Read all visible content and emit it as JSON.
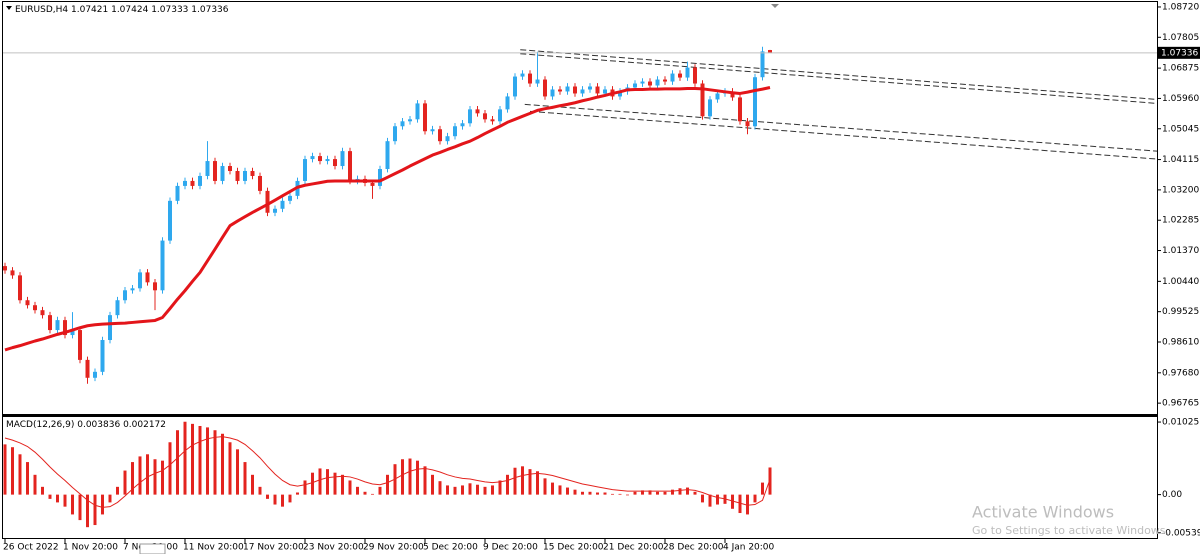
{
  "chart_data": {
    "type": "candlestick",
    "symbol": "EURUSD,H4",
    "up_color": "#2ea8ee",
    "down_color": "#e3241f",
    "categories": [
      "26 Oct 2022",
      null,
      null,
      null,
      null,
      null,
      null,
      null,
      "1 Nov 20:00",
      null,
      null,
      null,
      null,
      null,
      null,
      null,
      "7 Nov 20:00",
      null,
      null,
      null,
      null,
      null,
      null,
      null,
      "11 Nov 20:00",
      null,
      null,
      null,
      null,
      null,
      null,
      null,
      "17 Nov 20:00",
      null,
      null,
      null,
      null,
      null,
      null,
      null,
      "23 Nov 20:00",
      null,
      null,
      null,
      null,
      null,
      null,
      null,
      "29 Nov 20:00",
      null,
      null,
      null,
      null,
      null,
      null,
      null,
      "5 Dec 20:00",
      null,
      null,
      null,
      null,
      null,
      null,
      null,
      "9 Dec 20:00",
      null,
      null,
      null,
      null,
      null,
      null,
      null,
      "15 Dec 20:00",
      null,
      null,
      null,
      null,
      null,
      null,
      null,
      "21 Dec 20:00",
      null,
      null,
      null,
      null,
      null,
      null,
      null,
      "28 Dec 20:00",
      null,
      null,
      null,
      null,
      null,
      null,
      null,
      "4 Jan 20:00",
      null,
      null,
      null,
      null,
      null,
      null
    ],
    "open": [
      1.009,
      1.0077,
      1.0062,
      0.9987,
      0.9972,
      0.9957,
      0.9942,
      0.9897,
      0.9927,
      0.9882,
      0.9897,
      0.9807,
      0.9753,
      0.9771,
      0.9867,
      0.9942,
      0.9987,
      1.0017,
      1.0023,
      1.0071,
      1.0041,
      1.0017,
      1.0167,
      1.0287,
      1.0332,
      1.0347,
      1.0332,
      1.0362,
      1.0407,
      1.0347,
      1.0392,
      1.0377,
      1.0347,
      1.0377,
      1.0362,
      1.0317,
      1.0251,
      1.0263,
      1.0287,
      1.0302,
      1.0347,
      1.0413,
      1.0422,
      1.0407,
      1.0413,
      1.0392,
      1.0437,
      1.0347,
      1.0353,
      1.0341,
      1.0332,
      1.0383,
      1.0467,
      1.0512,
      1.0527,
      1.0533,
      1.0581,
      1.0497,
      1.0503,
      1.0467,
      1.0482,
      1.0512,
      1.0521,
      1.0563,
      1.0551,
      1.0533,
      1.0527,
      1.0563,
      1.0602,
      1.0662,
      1.0671,
      1.0641,
      1.0653,
      1.0602,
      1.0623,
      1.0617,
      1.0632,
      1.0611,
      1.0623,
      1.0632,
      1.0611,
      1.0623,
      1.0602,
      1.0617,
      1.0629,
      1.0641,
      1.0647,
      1.0635,
      1.0653,
      1.0647,
      1.0671,
      1.0659,
      1.0689,
      1.0641,
      1.0542,
      1.0593,
      1.0611,
      1.0617,
      1.0599,
      1.0527,
      1.0512,
      1.066,
      1.07421
    ],
    "high": [
      1.01,
      1.0087,
      1.0072,
      0.9997,
      0.9982,
      0.9967,
      0.9952,
      0.9937,
      0.9937,
      0.9951,
      0.9907,
      0.9817,
      0.9781,
      0.9877,
      0.9952,
      0.9997,
      1.0027,
      1.0033,
      1.0081,
      1.0081,
      1.0051,
      1.0177,
      1.0297,
      1.0342,
      1.0357,
      1.0357,
      1.0372,
      1.0467,
      1.0417,
      1.0402,
      1.0402,
      1.0387,
      1.0387,
      1.0387,
      1.0372,
      1.0327,
      1.0273,
      1.0297,
      1.0312,
      1.0357,
      1.0423,
      1.0432,
      1.0432,
      1.0423,
      1.0423,
      1.0447,
      1.0447,
      1.0363,
      1.0363,
      1.0351,
      1.0393,
      1.0477,
      1.0522,
      1.0537,
      1.0543,
      1.0591,
      1.0591,
      1.0513,
      1.0513,
      1.0492,
      1.0522,
      1.0531,
      1.0573,
      1.0573,
      1.0561,
      1.0543,
      1.0573,
      1.0612,
      1.0672,
      1.0681,
      1.0681,
      1.0737,
      1.0663,
      1.0633,
      1.0633,
      1.0642,
      1.0642,
      1.0633,
      1.0642,
      1.0642,
      1.0633,
      1.0633,
      1.0627,
      1.0639,
      1.0651,
      1.0657,
      1.0657,
      1.0663,
      1.0663,
      1.0681,
      1.0681,
      1.0707,
      1.0699,
      1.0651,
      1.0603,
      1.0621,
      1.0627,
      1.0627,
      1.0609,
      1.0537,
      1.067,
      1.0752,
      1.07424
    ],
    "low": [
      1.0067,
      1.0052,
      0.9977,
      0.9962,
      0.9947,
      0.9932,
      0.9887,
      0.9887,
      0.9872,
      0.9872,
      0.9797,
      0.9735,
      0.9743,
      0.9761,
      0.9857,
      0.9932,
      0.9977,
      1.0007,
      1.0013,
      1.0031,
      0.9957,
      1.0007,
      1.0157,
      1.0277,
      1.0322,
      1.0322,
      1.0322,
      1.0352,
      1.0337,
      1.0337,
      1.0367,
      1.0337,
      1.0337,
      1.0352,
      1.0307,
      1.0241,
      1.0241,
      1.0253,
      1.0277,
      1.0292,
      1.0337,
      1.0403,
      1.0397,
      1.0397,
      1.0382,
      1.0382,
      1.0337,
      1.0337,
      1.0331,
      1.0293,
      1.0322,
      1.0373,
      1.0457,
      1.0502,
      1.0517,
      1.0523,
      1.0487,
      1.0487,
      1.0457,
      1.0457,
      1.0472,
      1.0502,
      1.0511,
      1.0541,
      1.0523,
      1.0517,
      1.0517,
      1.0553,
      1.0592,
      1.0652,
      1.0631,
      1.0631,
      1.0592,
      1.0592,
      1.0607,
      1.0607,
      1.0601,
      1.0601,
      1.0613,
      1.0601,
      1.0601,
      1.0592,
      1.0592,
      1.0607,
      1.0619,
      1.0631,
      1.0625,
      1.0625,
      1.0637,
      1.0637,
      1.0649,
      1.0649,
      1.0631,
      1.0532,
      1.0532,
      1.0583,
      1.0601,
      1.0589,
      1.0517,
      1.0488,
      1.0502,
      1.065,
      1.07333
    ],
    "close": [
      1.0077,
      1.0062,
      0.9987,
      0.9972,
      0.9957,
      0.9942,
      0.9897,
      0.9927,
      0.9882,
      0.9897,
      0.9807,
      0.9753,
      0.9771,
      0.9867,
      0.9942,
      0.9987,
      1.0017,
      1.0023,
      1.0071,
      1.0041,
      1.0017,
      1.0167,
      1.0287,
      1.0332,
      1.0347,
      1.0332,
      1.0362,
      1.0407,
      1.0347,
      1.0392,
      1.0377,
      1.0347,
      1.0377,
      1.0362,
      1.0317,
      1.0251,
      1.0263,
      1.0287,
      1.0302,
      1.0347,
      1.0413,
      1.0422,
      1.0407,
      1.0413,
      1.0392,
      1.0437,
      1.0347,
      1.0353,
      1.0341,
      1.0332,
      1.0383,
      1.0467,
      1.0512,
      1.0527,
      1.0533,
      1.0581,
      1.0497,
      1.0503,
      1.0467,
      1.0482,
      1.0512,
      1.0521,
      1.0563,
      1.0551,
      1.0533,
      1.0527,
      1.0563,
      1.0602,
      1.0662,
      1.0671,
      1.0641,
      1.0653,
      1.0602,
      1.0623,
      1.0617,
      1.0632,
      1.0611,
      1.0623,
      1.0632,
      1.0611,
      1.0623,
      1.0602,
      1.0617,
      1.0629,
      1.0641,
      1.0647,
      1.0635,
      1.0653,
      1.0647,
      1.0671,
      1.0659,
      1.0689,
      1.0641,
      1.0542,
      1.0593,
      1.0611,
      1.0617,
      1.0599,
      1.0527,
      1.0512,
      1.066,
      1.0738,
      1.07336
    ],
    "ma": {
      "color": "#e3151a",
      "values": [
        0.9837,
        0.9844,
        0.985,
        0.9857,
        0.9864,
        0.987,
        0.9877,
        0.9884,
        0.989,
        0.9897,
        0.9904,
        0.991,
        0.9913,
        0.9915,
        0.9916,
        0.9917,
        0.9918,
        0.992,
        0.9922,
        0.9924,
        0.9926,
        0.9935,
        0.9962,
        0.999,
        1.0016,
        1.0044,
        1.0071,
        1.0106,
        1.0141,
        1.0177,
        1.0212,
        1.0226,
        1.0239,
        1.0252,
        1.0264,
        1.0276,
        1.0289,
        1.0302,
        1.0315,
        1.0328,
        1.0334,
        1.0338,
        1.0342,
        1.0346,
        1.0347,
        1.0347,
        1.0347,
        1.0347,
        1.0347,
        1.0347,
        1.0347,
        1.0358,
        1.0369,
        1.038,
        1.0392,
        1.0403,
        1.0414,
        1.0425,
        1.0433,
        1.0442,
        1.045,
        1.0459,
        1.0467,
        1.0478,
        1.049,
        1.0501,
        1.0512,
        1.0524,
        1.0533,
        1.0542,
        1.0551,
        1.056,
        1.0565,
        1.0569,
        1.0574,
        1.0578,
        1.0583,
        1.0589,
        1.0594,
        1.06,
        1.0605,
        1.0611,
        1.0616,
        1.0622,
        1.0623,
        1.0623,
        1.0624,
        1.0624,
        1.0625,
        1.0625,
        1.0625,
        1.0626,
        1.0626,
        1.0625,
        1.0622,
        1.0619,
        1.0616,
        1.0613,
        1.0611,
        1.0615,
        1.062,
        1.0624,
        1.0629
      ]
    },
    "trendlines": [
      {
        "x": [
          68.7,
          153.6
        ],
        "y": [
          1.0743,
          1.0593
        ]
      },
      {
        "x": [
          68.7,
          153.6
        ],
        "y": [
          1.0731,
          1.0581
        ]
      },
      {
        "x": [
          69.3,
          153.6
        ],
        "y": [
          1.0578,
          1.0437
        ]
      },
      {
        "x": [
          70.0,
          153.6
        ],
        "y": [
          1.0557,
          1.0413
        ]
      }
    ],
    "ylim": [
      0.96437,
      1.0887
    ],
    "yticks": [
      {
        "value": 1.0872,
        "label": "1.08720"
      },
      1.07805,
      1.06875,
      {
        "value": 1.0596,
        "label": "1.05960"
      },
      1.05045,
      1.04115,
      {
        "value": 1.032,
        "label": "1.03200"
      },
      1.02285,
      {
        "value": 1.0137,
        "label": "1.01370"
      },
      {
        "value": 1.0044,
        "label": "1.00440"
      },
      0.99525,
      {
        "value": 0.9861,
        "label": "0.98610"
      },
      {
        "value": 0.9768,
        "label": "0.97680"
      },
      0.96765
    ],
    "indicator": {
      "type": "macd",
      "title": "MACD(12,26,9)",
      "histogram": {
        "color": "#e3241f",
        "values": [
          0.0071,
          0.0067,
          0.0057,
          0.0046,
          0.0028,
          0.0011,
          -0.0006,
          -0.0011,
          -0.0017,
          -0.0028,
          -0.0036,
          -0.0046,
          -0.0043,
          -0.0028,
          -0.0011,
          0.0011,
          0.0034,
          0.0046,
          0.0054,
          0.0057,
          0.005,
          0.0048,
          0.0074,
          0.0091,
          0.0103,
          0.01,
          0.0097,
          0.0095,
          0.0091,
          0.0086,
          0.0074,
          0.0064,
          0.0046,
          0.0028,
          0.0011,
          -0.0006,
          -0.0014,
          -0.0017,
          -0.0011,
          0.0003,
          0.002,
          0.0031,
          0.0037,
          0.0036,
          0.0031,
          0.0028,
          0.002,
          0.0011,
          0.0004,
          0.0001,
          0.0011,
          0.0028,
          0.0043,
          0.005,
          0.0051,
          0.0048,
          0.004,
          0.0028,
          0.0019,
          0.0013,
          0.0011,
          0.0013,
          0.0016,
          0.0014,
          0.0011,
          0.0013,
          0.002,
          0.0028,
          0.0038,
          0.004,
          0.0036,
          0.0033,
          0.0023,
          0.0017,
          0.0013,
          0.001,
          0.0007,
          0.0004,
          0.0004,
          0.0003,
          0.0003,
          0.0001,
          0.0001,
          -0.0001,
          0.0004,
          0.0006,
          0.0006,
          0.0004,
          0.0004,
          0.0007,
          0.0009,
          0.001,
          0.0004,
          -0.0011,
          -0.0017,
          -0.0014,
          -0.0013,
          -0.002,
          -0.0026,
          -0.0028,
          -0.0011,
          0.0017,
          0.003836
        ]
      },
      "signal": {
        "color": "#e3241f",
        "values": [
          0.008,
          0.0077,
          0.0073,
          0.0068,
          0.006,
          0.005,
          0.0039,
          0.0029,
          0.002,
          0.001,
          0.0001,
          -0.0008,
          -0.0015,
          -0.0018,
          -0.0017,
          -0.0011,
          -0.0002,
          0.0008,
          0.0017,
          0.0025,
          0.003,
          0.0034,
          0.0042,
          0.0052,
          0.0062,
          0.007,
          0.0075,
          0.0079,
          0.0081,
          0.0082,
          0.008,
          0.0077,
          0.0071,
          0.0062,
          0.0052,
          0.004,
          0.0029,
          0.002,
          0.0014,
          0.0012,
          0.0014,
          0.0017,
          0.0021,
          0.0024,
          0.0025,
          0.0026,
          0.0025,
          0.0022,
          0.0018,
          0.0015,
          0.0014,
          0.0017,
          0.0022,
          0.0028,
          0.0033,
          0.0036,
          0.0037,
          0.0035,
          0.0032,
          0.0028,
          0.0025,
          0.0023,
          0.0022,
          0.002,
          0.0018,
          0.0017,
          0.0018,
          0.002,
          0.0024,
          0.0027,
          0.0029,
          0.003,
          0.0029,
          0.0027,
          0.0024,
          0.0021,
          0.0018,
          0.0015,
          0.0013,
          0.0011,
          0.0009,
          0.0007,
          0.0006,
          0.0005,
          0.0005,
          0.0005,
          0.0005,
          0.0005,
          0.0005,
          0.0005,
          0.0006,
          0.0007,
          0.0006,
          0.0003,
          -0.0001,
          -0.0004,
          -0.0006,
          -0.0009,
          -0.0012,
          -0.0015,
          -0.0014,
          -0.0008,
          0.002172
        ]
      },
      "ylim": [
        -0.00613,
        0.01097
      ],
      "yticks": [
        0.010257,
        {
          "value": 0,
          "label": "0.00"
        },
        -0.005392
      ]
    }
  },
  "watermark": {
    "title": "Activate Windows",
    "subtitle": "Go to Settings to activate Windows."
  }
}
